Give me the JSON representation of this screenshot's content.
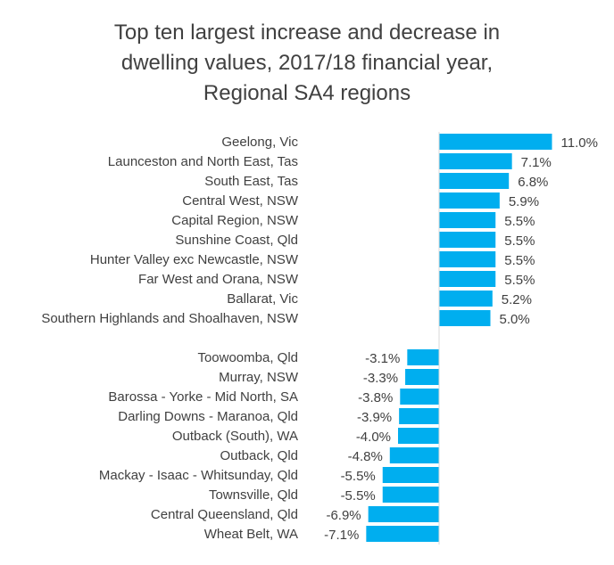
{
  "chart_data": {
    "type": "bar",
    "orientation": "horizontal",
    "title_lines": [
      "Top ten largest increase and decrease in",
      "dwelling values, 2017/18 financial year,",
      "Regional SA4 regions"
    ],
    "xlabel": "",
    "ylabel": "",
    "grid": false,
    "legend": "none",
    "bar_color": "#00AEEF",
    "unit": "%",
    "categories": [
      "Geelong, Vic",
      "Launceston and North East, Tas",
      "South East, Tas",
      "Central West, NSW",
      "Capital Region, NSW",
      "Sunshine Coast, Qld",
      "Hunter Valley exc Newcastle, NSW",
      "Far West and Orana, NSW",
      "Ballarat, Vic",
      "Southern Highlands and Shoalhaven, NSW",
      "",
      "Toowoomba, Qld",
      "Murray, NSW",
      "Barossa - Yorke - Mid North, SA",
      "Darling Downs - Maranoa, Qld",
      "Outback (South), WA",
      "Outback, Qld",
      "Mackay - Isaac - Whitsunday, Qld",
      "Townsville, Qld",
      "Central Queensland, Qld",
      "Wheat Belt, WA"
    ],
    "values": [
      11.0,
      7.1,
      6.8,
      5.9,
      5.5,
      5.5,
      5.5,
      5.5,
      5.2,
      5.0,
      null,
      -3.1,
      -3.3,
      -3.8,
      -3.9,
      -4.0,
      -4.8,
      -5.5,
      -5.5,
      -6.9,
      -7.1
    ],
    "data_labels": [
      "11.0%",
      "7.1%",
      "6.8%",
      "5.9%",
      "5.5%",
      "5.5%",
      "5.5%",
      "5.5%",
      "5.2%",
      "5.0%",
      "",
      "-3.1%",
      "-3.3%",
      "-3.8%",
      "-3.9%",
      "-4.0%",
      "-4.8%",
      "-5.5%",
      "-5.5%",
      "-6.9%",
      "-7.1%"
    ]
  }
}
